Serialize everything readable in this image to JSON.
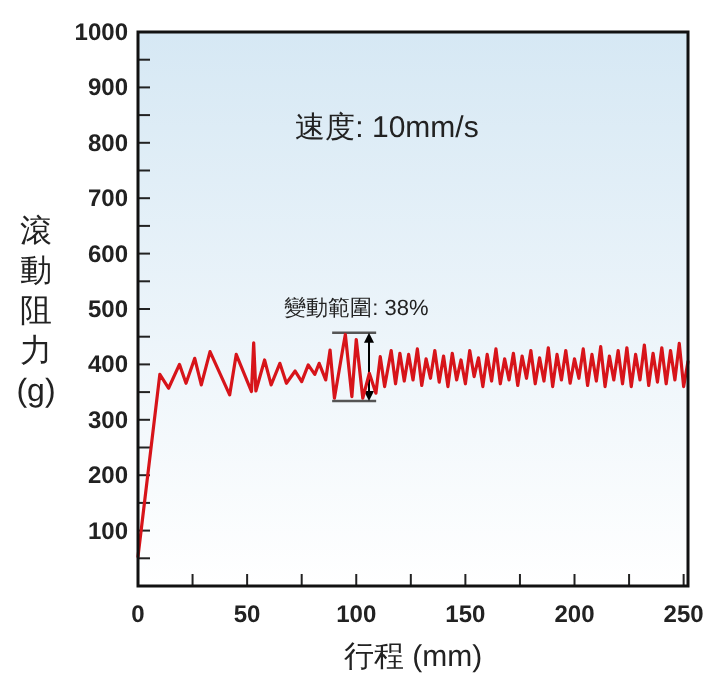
{
  "chart_data": {
    "type": "line",
    "xlabel": "行程 (mm)",
    "ylabel": "滾動阻力 (g)",
    "xlim": [
      0,
      252
    ],
    "ylim": [
      0,
      1000
    ],
    "xticks": [
      0,
      {
        "value": 25,
        "label": null
      },
      50,
      {
        "value": 75,
        "label": null
      },
      100,
      {
        "value": 125,
        "label": null
      },
      150,
      {
        "value": 175,
        "label": null
      },
      200,
      {
        "value": 225,
        "label": null
      },
      250
    ],
    "yticks": [
      {
        "value": 50,
        "label": null
      },
      100,
      {
        "value": 150,
        "label": null
      },
      200,
      {
        "value": 250,
        "label": null
      },
      300,
      {
        "value": 350,
        "label": null
      },
      400,
      {
        "value": 450,
        "label": null
      },
      500,
      {
        "value": 550,
        "label": null
      },
      600,
      {
        "value": 650,
        "label": null
      },
      700,
      {
        "value": 750,
        "label": null
      },
      800,
      {
        "value": 850,
        "label": null
      },
      900,
      {
        "value": 950,
        "label": null
      },
      1000
    ],
    "grid": false,
    "marker": "none",
    "line_style": "solid",
    "annotations": [
      "速度: 10mm/s",
      "變動範圍: 38%"
    ],
    "series": [
      {
        "color": "#d7141a",
        "x": [
          0,
          10,
          14,
          19,
          22,
          26,
          29,
          33,
          42,
          45,
          52,
          53,
          54,
          58,
          61,
          65,
          68,
          72,
          75,
          78,
          81,
          83,
          86,
          88,
          90,
          94,
          95,
          98,
          100,
          103,
          106,
          109,
          111,
          113,
          116,
          118,
          120,
          122,
          124,
          126,
          128,
          130,
          132,
          134,
          136,
          138,
          140,
          142,
          144,
          146,
          148,
          150,
          152,
          154,
          156,
          158,
          160,
          162,
          164,
          166,
          168,
          170,
          172,
          174,
          176,
          178,
          180,
          182,
          184,
          186,
          188,
          190,
          192,
          194,
          196,
          198,
          200,
          202,
          204,
          206,
          208,
          210,
          212,
          214,
          216,
          218,
          220,
          222,
          224,
          226,
          228,
          230,
          232,
          234,
          236,
          238,
          240,
          242,
          244,
          246,
          248,
          250,
          252
        ],
        "values": [
          53,
          382,
          357,
          400,
          366,
          411,
          363,
          423,
          345,
          418,
          351,
          439,
          352,
          408,
          363,
          402,
          366,
          388,
          369,
          399,
          382,
          402,
          372,
          426,
          339,
          432,
          454,
          342,
          445,
          339,
          384,
          348,
          414,
          360,
          425,
          365,
          420,
          370,
          418,
          372,
          428,
          362,
          410,
          375,
          425,
          368,
          415,
          360,
          420,
          372,
          408,
          365,
          425,
          378,
          412,
          360,
          418,
          370,
          428,
          365,
          410,
          372,
          420,
          362,
          415,
          375,
          425,
          365,
          412,
          370,
          430,
          360,
          418,
          372,
          425,
          366,
          410,
          375,
          428,
          362,
          418,
          370,
          432,
          360,
          415,
          372,
          425,
          365,
          430,
          360,
          418,
          372,
          435,
          362,
          420,
          368,
          430,
          365,
          425,
          372,
          438,
          360,
          405
        ]
      }
    ]
  }
}
